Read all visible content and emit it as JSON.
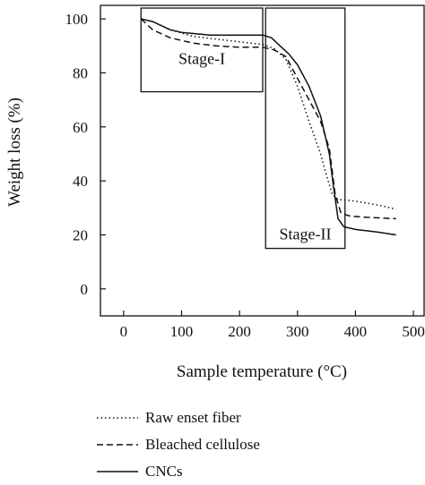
{
  "chart_data": {
    "type": "line",
    "xlabel": "Sample temperature (°C)",
    "ylabel": "Weight loss (%)",
    "xlim": [
      -40,
      520
    ],
    "ylim": [
      -10,
      105
    ],
    "xticks": [
      0,
      100,
      200,
      300,
      400,
      500
    ],
    "yticks": [
      0,
      20,
      40,
      60,
      80,
      100
    ],
    "grid": false,
    "legend_position": "bottom",
    "annotations": [
      {
        "label": "Stage-I",
        "x_range": [
          30,
          240
        ],
        "y_range": [
          73,
          104
        ]
      },
      {
        "label": "Stage-II",
        "x_range": [
          245,
          382
        ],
        "y_range": [
          15,
          104
        ]
      }
    ],
    "series": [
      {
        "name": "Raw enset fiber",
        "style": "dotted",
        "x": [
          30,
          50,
          80,
          120,
          160,
          200,
          240,
          260,
          280,
          300,
          320,
          340,
          350,
          360,
          370,
          380,
          400,
          440,
          470
        ],
        "y": [
          100,
          99,
          96,
          93.5,
          92.5,
          91.5,
          90.5,
          89,
          85,
          75,
          62,
          50,
          42,
          35,
          33,
          33,
          32.5,
          31,
          29.5
        ]
      },
      {
        "name": "Bleached cellulose",
        "style": "dashed",
        "x": [
          30,
          50,
          80,
          120,
          160,
          200,
          240,
          260,
          280,
          300,
          320,
          340,
          355,
          365,
          375,
          390,
          420,
          470
        ],
        "y": [
          100,
          96,
          93,
          91,
          90,
          89.5,
          89.5,
          88.5,
          86,
          78,
          70,
          62,
          52,
          35,
          28,
          27,
          26.5,
          26
        ]
      },
      {
        "name": "CNCs",
        "style": "solid",
        "x": [
          30,
          50,
          80,
          100,
          150,
          200,
          240,
          255,
          270,
          285,
          300,
          320,
          340,
          355,
          362,
          370,
          380,
          400,
          440,
          470
        ],
        "y": [
          100,
          99,
          96,
          95,
          94,
          94,
          94,
          93,
          90,
          87,
          83,
          75,
          64,
          50,
          38,
          26,
          23,
          22,
          21,
          20
        ]
      }
    ]
  }
}
